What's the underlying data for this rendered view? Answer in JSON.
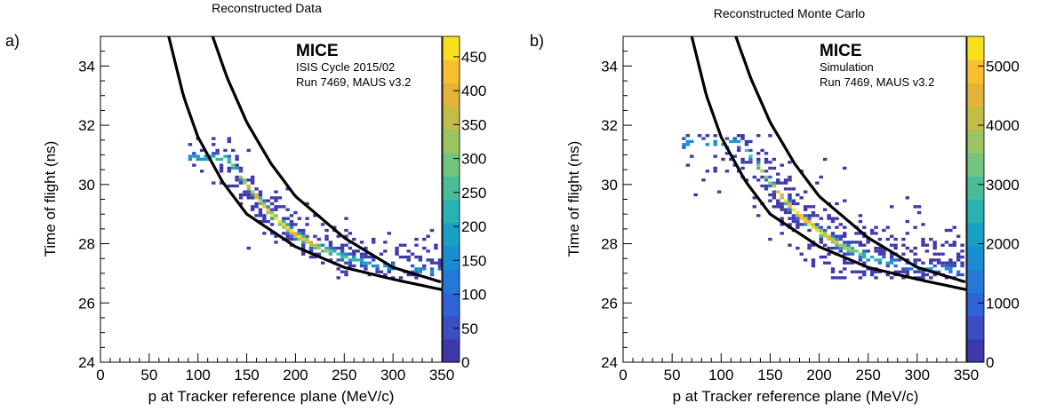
{
  "panels": [
    {
      "panel_label": "a)",
      "title": "Reconstructed Data",
      "experiment": "MICE",
      "info_line1": "ISIS Cycle 2015/02",
      "info_line2": "Run 7469, MAUS v3.2",
      "xlabel": "p at Tracker reference plane (MeV/c)",
      "ylabel": "Time of flight (ns)",
      "x_ticks": [
        "0",
        "50",
        "100",
        "150",
        "200",
        "250",
        "300",
        "350"
      ],
      "y_ticks": [
        "24",
        "26",
        "28",
        "30",
        "32",
        "34"
      ],
      "cb_ticks": [
        "0",
        "50",
        "100",
        "150",
        "200",
        "250",
        "300",
        "350",
        "400",
        "450"
      ]
    },
    {
      "panel_label": "b)",
      "title": "Reconstructed Monte Carlo",
      "experiment": "MICE",
      "info_line1": "Simulation",
      "info_line2": "Run 7469, MAUS v3.2",
      "xlabel": "p at Tracker reference plane (MeV/c)",
      "ylabel": "Time of flight (ns)",
      "x_ticks": [
        "0",
        "50",
        "100",
        "150",
        "200",
        "250",
        "300",
        "350"
      ],
      "y_ticks": [
        "24",
        "26",
        "28",
        "30",
        "32",
        "34"
      ],
      "cb_ticks": [
        "0",
        "1000",
        "2000",
        "3000",
        "4000",
        "5000"
      ]
    }
  ],
  "chart_data": [
    {
      "type": "heatmap",
      "title": "Reconstructed Data",
      "xlabel": "p at Tracker reference plane (MeV/c)",
      "ylabel": "Time of flight (ns)",
      "xlim": [
        0,
        350
      ],
      "ylim": [
        24,
        35
      ],
      "z_range": [
        0,
        480
      ],
      "colormap": "viridis",
      "ridge": [
        [
          130,
          30.9
        ],
        [
          150,
          30.0
        ],
        [
          175,
          29.0
        ],
        [
          200,
          28.3
        ],
        [
          225,
          27.85
        ],
        [
          250,
          27.55
        ],
        [
          275,
          27.35
        ],
        [
          300,
          27.2
        ],
        [
          340,
          27.05
        ]
      ],
      "cuts": [
        {
          "name": "upper",
          "points": [
            [
              115,
              35.0
            ],
            [
              130,
              33.6
            ],
            [
              150,
              32.1
            ],
            [
              175,
              30.7
            ],
            [
              200,
              29.6
            ],
            [
              250,
              28.2
            ],
            [
              300,
              27.2
            ],
            [
              350,
              26.7
            ]
          ]
        },
        {
          "name": "lower",
          "points": [
            [
              70,
              35.0
            ],
            [
              85,
              33.0
            ],
            [
              100,
              31.6
            ],
            [
              125,
              30.1
            ],
            [
              150,
              29.0
            ],
            [
              200,
              27.9
            ],
            [
              250,
              27.2
            ],
            [
              300,
              26.8
            ],
            [
              350,
              26.45
            ]
          ]
        }
      ]
    },
    {
      "type": "heatmap",
      "title": "Reconstructed Monte Carlo",
      "xlabel": "p at Tracker reference plane (MeV/c)",
      "ylabel": "Time of flight (ns)",
      "xlim": [
        0,
        350
      ],
      "ylim": [
        24,
        35
      ],
      "z_range": [
        0,
        5500
      ],
      "colormap": "viridis",
      "ridge": [
        [
          120,
          31.4
        ],
        [
          150,
          30.1
        ],
        [
          175,
          29.1
        ],
        [
          200,
          28.4
        ],
        [
          225,
          27.9
        ],
        [
          250,
          27.55
        ],
        [
          275,
          27.35
        ],
        [
          300,
          27.2
        ],
        [
          345,
          27.1
        ]
      ],
      "cuts": [
        {
          "name": "upper",
          "points": [
            [
              115,
              35.0
            ],
            [
              130,
              33.6
            ],
            [
              150,
              32.1
            ],
            [
              175,
              30.7
            ],
            [
              200,
              29.6
            ],
            [
              250,
              28.2
            ],
            [
              300,
              27.2
            ],
            [
              350,
              26.7
            ]
          ]
        },
        {
          "name": "lower",
          "points": [
            [
              70,
              35.0
            ],
            [
              85,
              33.0
            ],
            [
              100,
              31.6
            ],
            [
              125,
              30.1
            ],
            [
              150,
              29.0
            ],
            [
              200,
              27.9
            ],
            [
              250,
              27.2
            ],
            [
              300,
              26.8
            ],
            [
              350,
              26.45
            ]
          ]
        }
      ]
    }
  ]
}
